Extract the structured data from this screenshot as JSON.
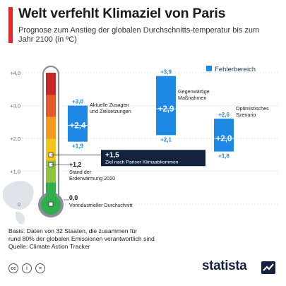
{
  "header": {
    "title": "Welt verfehlt Klimaziel von Paris",
    "subtitle": "Prognose zum Anstieg der globalen Durchschnitts-temperatur bis zum Jahr 2100 (in ºC)"
  },
  "chart_data": {
    "type": "bar",
    "ylim": [
      0,
      4
    ],
    "yticks": [
      "+4,0",
      "+3,0",
      "+2,0",
      "+1,0",
      "0"
    ],
    "legend": {
      "label": "Fehlerbereich",
      "position": "top-right",
      "color": "#1e88e5"
    },
    "scenarios": [
      {
        "label": "Aktuelle Zusagen und Zielsetzungen",
        "low": 1.9,
        "high": 3.0,
        "mid": 2.4,
        "low_label": "+1,9",
        "high_label": "+3,0",
        "mid_label": "+2,4"
      },
      {
        "label": "Gegenwärtige Maßnahmen",
        "low": 2.1,
        "high": 3.9,
        "mid": 2.9,
        "low_label": "+2,1",
        "high_label": "+3,9",
        "mid_label": "+2,9"
      },
      {
        "label": "Optimistisches Szenario",
        "low": 1.6,
        "high": 2.6,
        "mid": 2.0,
        "low_label": "+1,6",
        "high_label": "+2,6",
        "mid_label": "+2,0"
      }
    ],
    "markers": [
      {
        "value": 1.5,
        "label": "+1,5",
        "text": "Ziel nach Pariser Klimaabkommen"
      },
      {
        "value": 1.2,
        "label": "+1,2",
        "text": "Stand der Erderwärmung 2020"
      },
      {
        "value": 0.0,
        "label": "0,0",
        "text": "Vorindustrieller Durchschnitt"
      }
    ],
    "thermo_colors": [
      "#2fae4e",
      "#8fc440",
      "#f3c41c",
      "#f39a1e",
      "#e4582a",
      "#c62828"
    ]
  },
  "footer": {
    "basis": "Basis: Daten von 32 Staaten, die zusammen für\nrund 80% der globalen Emissionen verantwortlich sind\nQuelle: Climate Action Tracker",
    "brand": "statista",
    "icons": [
      "cc-icon",
      "by-icon",
      "nd-icon"
    ]
  },
  "colors": {
    "accent": "#e8262a",
    "bar": "#1e88e5",
    "navy": "#13233d",
    "grid": "#cfd6de"
  }
}
